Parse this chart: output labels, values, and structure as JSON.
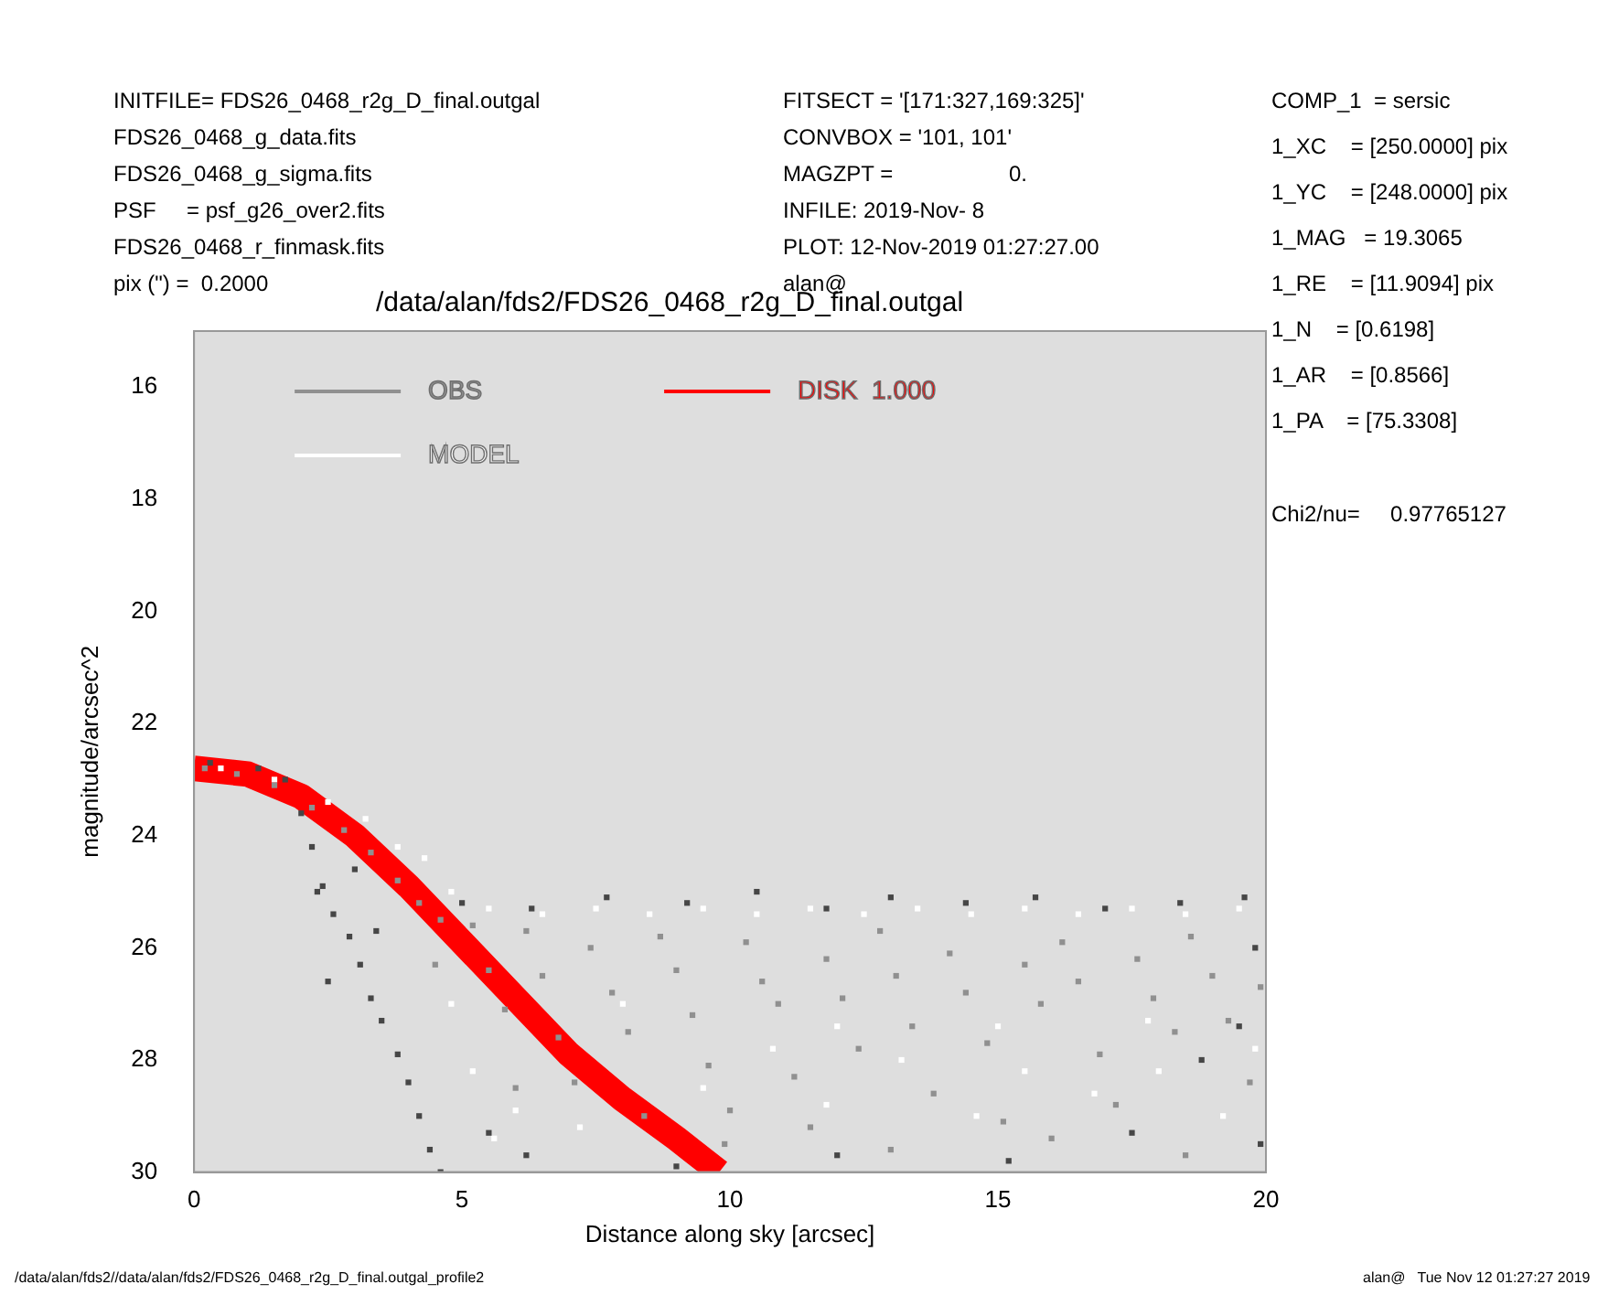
{
  "chart_data": {
    "type": "scatter",
    "title": "/data/alan/fds2/FDS26_0468_r2g_D_final.outgal",
    "xlabel": "Distance along sky [arcsec]",
    "ylabel": "magnitude/arcsec^2",
    "xlim": [
      0,
      20
    ],
    "xticks": [
      0,
      5,
      10,
      15,
      20
    ],
    "ylim": [
      30,
      15
    ],
    "yticks": [
      16,
      18,
      20,
      22,
      24,
      26,
      28,
      30
    ],
    "grid": false,
    "legend": "top left",
    "marker": "square",
    "series": [
      {
        "name": "OBS",
        "color": "#909090",
        "x": [
          0.2,
          0.8,
          1.5,
          2.2,
          2.8,
          3.3,
          3.8,
          4.2,
          4.6,
          4.5,
          5.2,
          5.5,
          5.8,
          6.2,
          6.5,
          6.8,
          7.1,
          7.4,
          7.8,
          8.1,
          8.4,
          8.7,
          9.0,
          9.3,
          9.6,
          9.9,
          10.3,
          10.6,
          10.9,
          11.2,
          11.5,
          11.8,
          12.1,
          12.4,
          12.8,
          13.1,
          13.4,
          13.8,
          14.1,
          14.4,
          14.8,
          15.1,
          15.5,
          15.8,
          16.2,
          16.5,
          16.9,
          17.2,
          17.6,
          17.9,
          18.3,
          18.6,
          19.0,
          19.3,
          19.7,
          19.9,
          6.0,
          10.0,
          13.0,
          16.0,
          18.5
        ],
        "values": [
          22.8,
          22.9,
          23.1,
          23.5,
          23.9,
          24.3,
          24.8,
          25.2,
          25.5,
          26.3,
          25.6,
          26.4,
          27.1,
          25.7,
          26.5,
          27.6,
          28.4,
          26.0,
          26.8,
          27.5,
          29.0,
          25.8,
          26.4,
          27.2,
          28.1,
          29.5,
          25.9,
          26.6,
          27.0,
          28.3,
          29.2,
          26.2,
          26.9,
          27.8,
          25.7,
          26.5,
          27.4,
          28.6,
          26.1,
          26.8,
          27.7,
          29.1,
          26.3,
          27.0,
          25.9,
          26.6,
          27.9,
          28.8,
          26.2,
          26.9,
          27.5,
          25.8,
          26.5,
          27.3,
          28.4,
          26.7,
          28.5,
          28.9,
          29.6,
          29.4,
          29.7
        ]
      },
      {
        "color": "#464646",
        "x": [
          0.3,
          1.2,
          1.7,
          2.0,
          2.2,
          2.4,
          2.6,
          2.3,
          2.9,
          3.1,
          2.5,
          3.3,
          3.5,
          3.8,
          4.0,
          4.2,
          4.4,
          4.6,
          3.0,
          3.4,
          5.0,
          6.3,
          7.7,
          9.2,
          10.5,
          11.8,
          13.0,
          14.4,
          15.7,
          17.0,
          18.4,
          19.6,
          19.8,
          19.5,
          18.8,
          17.5,
          15.2,
          12.0,
          9.0,
          6.2,
          5.5,
          19.9
        ],
        "values": [
          22.7,
          22.8,
          23.0,
          23.6,
          24.2,
          24.9,
          25.4,
          25.0,
          25.8,
          26.3,
          26.6,
          26.9,
          27.3,
          27.9,
          28.4,
          29.0,
          29.6,
          30.0,
          24.6,
          25.7,
          25.2,
          25.3,
          25.1,
          25.2,
          25.0,
          25.3,
          25.1,
          25.2,
          25.1,
          25.3,
          25.2,
          25.1,
          26.0,
          27.4,
          28.0,
          29.3,
          29.8,
          29.7,
          29.9,
          29.7,
          29.3,
          29.5
        ]
      },
      {
        "name": "MODEL",
        "color": "#ffffff",
        "x": [
          0.5,
          1.5,
          2.5,
          3.2,
          3.8,
          4.3,
          4.8,
          5.5,
          6.5,
          7.5,
          8.5,
          9.5,
          10.5,
          11.5,
          12.5,
          13.5,
          14.5,
          15.5,
          16.5,
          17.5,
          18.5,
          19.5,
          4.8,
          5.2,
          5.6,
          6.0,
          7.2,
          8.0,
          9.5,
          10.8,
          11.8,
          13.2,
          14.6,
          15.5,
          16.8,
          18.0,
          19.2,
          12.0,
          15.0,
          17.8,
          19.8
        ],
        "values": [
          22.8,
          23.0,
          23.4,
          23.7,
          24.2,
          24.4,
          25.0,
          25.3,
          25.4,
          25.3,
          25.4,
          25.3,
          25.4,
          25.3,
          25.4,
          25.3,
          25.4,
          25.3,
          25.4,
          25.3,
          25.4,
          25.3,
          27.0,
          28.2,
          29.4,
          28.9,
          29.2,
          27.0,
          28.5,
          27.8,
          28.8,
          28.0,
          29.0,
          28.2,
          28.6,
          28.2,
          29.0,
          27.4,
          27.4,
          27.3,
          27.8
        ]
      },
      {
        "name": "DISK  1.000",
        "type": "line",
        "marker": "none",
        "color": "#ff0000",
        "x": [
          0,
          1,
          2,
          3,
          4,
          5,
          6,
          7,
          8,
          9,
          9.8
        ],
        "values": [
          22.8,
          22.9,
          23.3,
          24.0,
          24.9,
          25.9,
          26.9,
          27.9,
          28.7,
          29.4,
          30
        ]
      }
    ],
    "annotations": [
      "INITFILE= FDS26_0468_r2g_D_final.outgal",
      "FDS26_0468_g_data.fits",
      "FDS26_0468_g_sigma.fits",
      "PSF     = psf_g26_over2.fits",
      "FDS26_0468_r_finmask.fits",
      "pix (\") =  0.2000",
      "FITSECT = '[171:327,169:325]'",
      "CONVBOX = '101, 101'",
      "MAGZPT =                   0.",
      "INFILE: 2019-Nov- 8",
      "PLOT: 12-Nov-2019 01:27:27.00",
      "alan@",
      "COMP_1  = sersic",
      "1_XC    = [250.0000] pix",
      "1_YC    = [248.0000] pix",
      "1_MAG   = 19.3065",
      "1_RE    = [11.9094] pix",
      "1_N    = [0.6198]",
      "1_AR    = [0.8566]",
      "1_PA    = [75.3308]",
      "Chi2/nu=     0.97765127",
      "/data/alan/fds2//data/alan/fds2/FDS26_0468_r2g_D_final.outgal_profile2",
      "alan@   Tue Nov 12 01:27:27 2019"
    ]
  }
}
